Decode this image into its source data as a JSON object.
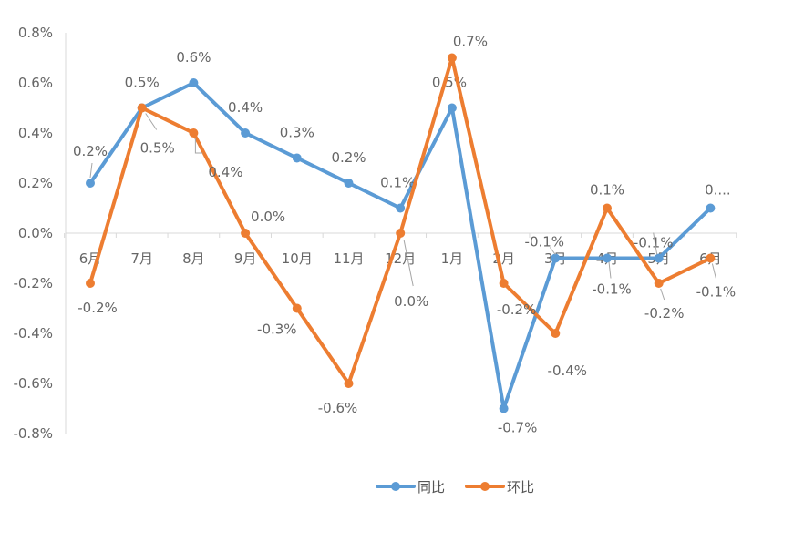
{
  "chart_data": {
    "type": "line",
    "title": "",
    "xlabel": "",
    "ylabel": "",
    "categories": [
      "6月",
      "7月",
      "8月",
      "9月",
      "10月",
      "11月",
      "12月",
      "1月",
      "2月",
      "3月",
      "4月",
      "5月",
      "6月"
    ],
    "ylim": [
      -0.8,
      0.8
    ],
    "yticks": [
      "0.8%",
      "0.6%",
      "0.4%",
      "0.2%",
      "0.0%",
      "-0.2%",
      "-0.4%",
      "-0.6%",
      "-0.8%"
    ],
    "ytick_values": [
      0.8,
      0.6,
      0.4,
      0.2,
      0.0,
      -0.2,
      -0.4,
      -0.6,
      -0.8
    ],
    "grid": false,
    "legend": "bottom",
    "series": [
      {
        "name": "同比",
        "color": "#5B9BD5",
        "values": [
          0.2,
          0.5,
          0.6,
          0.4,
          0.3,
          0.2,
          0.1,
          0.5,
          -0.7,
          -0.1,
          -0.1,
          -0.1,
          0.1
        ],
        "labels": [
          "0.2%",
          "0.5%",
          "0.6%",
          "0.4%",
          "0.3%",
          "0.2%",
          "0.1%",
          "0.5%",
          "-0.7%",
          "-0.1%",
          "",
          "-0.1%",
          "0...."
        ]
      },
      {
        "name": "环比",
        "color": "#ED7D31",
        "values": [
          -0.2,
          0.5,
          0.4,
          0.0,
          -0.3,
          -0.6,
          0.0,
          0.7,
          -0.2,
          -0.4,
          0.1,
          -0.2,
          -0.1
        ],
        "labels": [
          "-0.2%",
          "0.5%",
          "0.4%",
          "0.0%",
          "-0.3%",
          "-0.6%",
          "0.0%",
          "0.7%",
          "-0.2%",
          "-0.4%",
          "0.1%",
          "-0.2%",
          "-0.1%"
        ]
      }
    ],
    "extra_labels": [
      "-0.1%"
    ]
  }
}
